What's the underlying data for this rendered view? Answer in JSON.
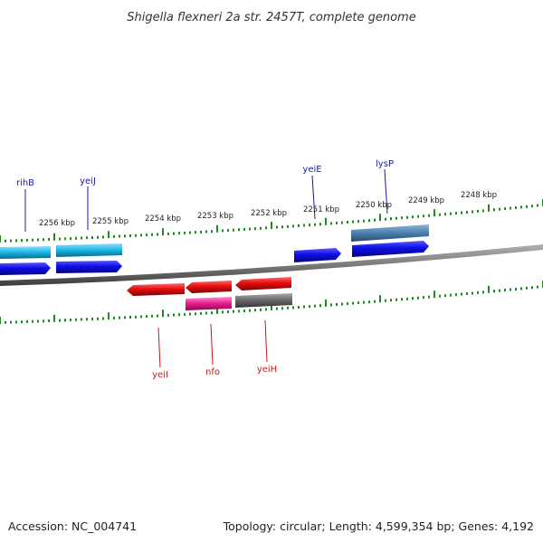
{
  "title": "Shigella flexneri 2a str. 2457T, complete genome",
  "footer": {
    "accession": "Accession: NC_004741",
    "topology": "Topology: circular; Length: 4,599,354 bp; Genes: 4,192"
  },
  "kbp_labels": [
    "2256 kbp",
    "2255 kbp",
    "2254 kbp",
    "2253 kbp",
    "2252 kbp",
    "2251 kbp",
    "2250 kbp",
    "2249 kbp",
    "2248 kbp"
  ],
  "genes_top": [
    "rihB",
    "yeiJ",
    "yeiE",
    "lysP"
  ],
  "genes_bottom": [
    "yeiI",
    "nfo",
    "yeiH"
  ],
  "colors": {
    "forward_cds": "#0d0de6",
    "reverse_cds": "#e60d0d",
    "forward_gene_upper": "#18b4e6",
    "forward_gene_lysP": "#4a7fb0",
    "reverse_gene_nfo": "#e61a8c",
    "reverse_gene_yeiH": "#666666",
    "backbone": "#808080",
    "tick": "#1f8a1f",
    "forward_label_line": "#1a1aa8",
    "reverse_label_line": "#c41a1a"
  }
}
